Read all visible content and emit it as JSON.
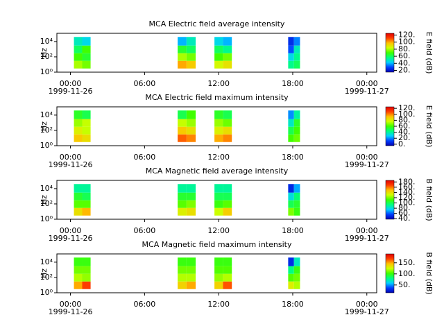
{
  "chart_data": [
    {
      "type": "heatmap",
      "title": "MCA  Electric field average intensity",
      "ylabel": "Hz",
      "colorbar_label": "E field (dB)",
      "y_log": true,
      "xlim": [
        -1.1,
        24.8
      ],
      "ylim": [
        1,
        120000
      ],
      "xticks": [
        {
          "value": 0,
          "label": "00:00"
        },
        {
          "value": 6,
          "label": "06:00"
        },
        {
          "value": 12,
          "label": "12:00"
        },
        {
          "value": 18,
          "label": "18:00"
        },
        {
          "value": 24,
          "label": "00:00"
        }
      ],
      "x_date_labels": [
        {
          "value": 0,
          "label": "1999-11-26"
        },
        {
          "value": 24,
          "label": "1999-11-27"
        }
      ],
      "yticks": [
        {
          "value": 1,
          "label": "10⁰"
        },
        {
          "value": 100,
          "label": "10²"
        },
        {
          "value": 10000,
          "label": "10⁴"
        }
      ],
      "clim": [
        15,
        125
      ],
      "cticks": [
        {
          "value": 20,
          "label": "20."
        },
        {
          "value": 40,
          "label": "40."
        },
        {
          "value": 60,
          "label": "60."
        },
        {
          "value": 80,
          "label": "80."
        },
        {
          "value": 100,
          "label": "100."
        },
        {
          "value": 120,
          "label": "120."
        }
      ],
      "colormap": [
        "#0000b0",
        "#0040ff",
        "#00d0ff",
        "#00ff80",
        "#40ff00",
        "#d0ff00",
        "#ffc000",
        "#ff4000",
        "#e00000"
      ],
      "x_edges": [
        0.28,
        0.95,
        1.63,
        8.68,
        9.4,
        10.14,
        11.66,
        12.35,
        13.07,
        17.63,
        18.1,
        18.59
      ],
      "y_edges": [
        3,
        30,
        300,
        3000,
        40000
      ],
      "values": [
        [
          80,
          75,
          null,
          100,
          95,
          null,
          85,
          90,
          null,
          55,
          60
        ],
        [
          70,
          65,
          null,
          80,
          75,
          null,
          70,
          75,
          null,
          45,
          55
        ],
        [
          60,
          70,
          null,
          65,
          60,
          null,
          60,
          55,
          null,
          30,
          50
        ],
        [
          50,
          45,
          null,
          40,
          50,
          null,
          45,
          40,
          null,
          25,
          35
        ]
      ]
    },
    {
      "type": "heatmap",
      "title": "MCA  Electric field maximum intensity",
      "ylabel": "Hz",
      "colorbar_label": "E field (dB)",
      "y_log": true,
      "xlim": [
        -1.1,
        24.8
      ],
      "ylim": [
        1,
        120000
      ],
      "xticks": [
        {
          "value": 0,
          "label": "00:00"
        },
        {
          "value": 6,
          "label": "06:00"
        },
        {
          "value": 12,
          "label": "12:00"
        },
        {
          "value": 18,
          "label": "18:00"
        },
        {
          "value": 24,
          "label": "00:00"
        }
      ],
      "x_date_labels": [
        {
          "value": 0,
          "label": "1999-11-26"
        },
        {
          "value": 24,
          "label": "1999-11-27"
        }
      ],
      "yticks": [
        {
          "value": 1,
          "label": "10⁰"
        },
        {
          "value": 100,
          "label": "10²"
        },
        {
          "value": 10000,
          "label": "10⁴"
        }
      ],
      "clim": [
        -5,
        125
      ],
      "cticks": [
        {
          "value": 0,
          "label": "0."
        },
        {
          "value": 20,
          "label": "20."
        },
        {
          "value": 40,
          "label": "40."
        },
        {
          "value": 60,
          "label": "60."
        },
        {
          "value": 80,
          "label": "80."
        },
        {
          "value": 100,
          "label": "100."
        },
        {
          "value": 120,
          "label": "120."
        }
      ],
      "colormap": [
        "#0000b0",
        "#0040ff",
        "#00d0ff",
        "#00ff80",
        "#40ff00",
        "#d0ff00",
        "#ffc000",
        "#ff4000",
        "#e00000"
      ],
      "x_edges": [
        0.28,
        0.95,
        1.63,
        8.68,
        9.4,
        10.14,
        11.66,
        12.35,
        13.07,
        17.63,
        18.1,
        18.59
      ],
      "y_edges": [
        3,
        30,
        300,
        3000,
        40000
      ],
      "values": [
        [
          90,
          85,
          null,
          105,
          100,
          null,
          95,
          100,
          null,
          60,
          65
        ],
        [
          80,
          75,
          null,
          90,
          85,
          null,
          80,
          85,
          null,
          50,
          60
        ],
        [
          70,
          75,
          null,
          75,
          70,
          null,
          70,
          65,
          null,
          35,
          55
        ],
        [
          55,
          50,
          null,
          50,
          60,
          null,
          55,
          50,
          null,
          20,
          40
        ]
      ]
    },
    {
      "type": "heatmap",
      "title": "MCA  Magnetic field average intensity",
      "ylabel": "Hz",
      "colorbar_label": "B field (dB)",
      "y_log": true,
      "xlim": [
        -1.1,
        24.8
      ],
      "ylim": [
        1,
        120000
      ],
      "xticks": [
        {
          "value": 0,
          "label": "00:00"
        },
        {
          "value": 6,
          "label": "06:00"
        },
        {
          "value": 12,
          "label": "12:00"
        },
        {
          "value": 18,
          "label": "18:00"
        },
        {
          "value": 24,
          "label": "00:00"
        }
      ],
      "x_date_labels": [
        {
          "value": 0,
          "label": "1999-11-26"
        },
        {
          "value": 24,
          "label": "1999-11-27"
        }
      ],
      "yticks": [
        {
          "value": 1,
          "label": "10⁰"
        },
        {
          "value": 100,
          "label": "10²"
        },
        {
          "value": 10000,
          "label": "10⁴"
        }
      ],
      "clim": [
        38,
        186
      ],
      "cticks": [
        {
          "value": 40,
          "label": "40."
        },
        {
          "value": 60,
          "label": "60."
        },
        {
          "value": 80,
          "label": "80."
        },
        {
          "value": 100,
          "label": "100."
        },
        {
          "value": 120,
          "label": "120."
        },
        {
          "value": 140,
          "label": "140."
        },
        {
          "value": 160,
          "label": "160."
        },
        {
          "value": 180,
          "label": "180."
        }
      ],
      "colormap": [
        "#0000b0",
        "#0040ff",
        "#00d0ff",
        "#00ff80",
        "#40ff00",
        "#d0ff00",
        "#ffc000",
        "#ff4000",
        "#e00000"
      ],
      "x_edges": [
        0.28,
        0.95,
        1.63,
        8.68,
        9.4,
        10.14,
        11.66,
        12.35,
        13.07,
        17.63,
        18.1,
        18.59
      ],
      "y_edges": [
        3,
        30,
        300,
        3000,
        40000
      ],
      "values": [
        [
          140,
          150,
          null,
          135,
          140,
          null,
          130,
          145,
          null,
          120,
          110
        ],
        [
          115,
          115,
          null,
          115,
          120,
          null,
          110,
          115,
          null,
          100,
          105
        ],
        [
          105,
          100,
          null,
          105,
          105,
          null,
          100,
          100,
          null,
          80,
          95
        ],
        [
          90,
          90,
          null,
          90,
          90,
          null,
          90,
          90,
          null,
          50,
          70
        ]
      ]
    },
    {
      "type": "heatmap",
      "title": "MCA  Magnetic field maximum intensity",
      "ylabel": "Hz",
      "colorbar_label": "B field (dB)",
      "y_log": true,
      "xlim": [
        -1.1,
        24.8
      ],
      "ylim": [
        1,
        120000
      ],
      "xticks": [
        {
          "value": 0,
          "label": "00:00"
        },
        {
          "value": 6,
          "label": "06:00"
        },
        {
          "value": 12,
          "label": "12:00"
        },
        {
          "value": 18,
          "label": "18:00"
        },
        {
          "value": 24,
          "label": "00:00"
        }
      ],
      "x_date_labels": [
        {
          "value": 0,
          "label": "1999-11-26"
        },
        {
          "value": 24,
          "label": "1999-11-27"
        }
      ],
      "yticks": [
        {
          "value": 1,
          "label": "10⁰"
        },
        {
          "value": 100,
          "label": "10²"
        },
        {
          "value": 10000,
          "label": "10⁴"
        }
      ],
      "clim": [
        15,
        190
      ],
      "cticks": [
        {
          "value": 50,
          "label": "50."
        },
        {
          "value": 100,
          "label": "100."
        },
        {
          "value": 150,
          "label": "150."
        }
      ],
      "colormap": [
        "#0000b0",
        "#0040ff",
        "#00d0ff",
        "#00ff80",
        "#40ff00",
        "#d0ff00",
        "#ffc000",
        "#ff4000",
        "#e00000"
      ],
      "x_edges": [
        0.28,
        0.95,
        1.63,
        8.68,
        9.4,
        10.14,
        11.66,
        12.35,
        13.07,
        17.63,
        18.1,
        18.59
      ],
      "y_edges": [
        3,
        30,
        300,
        3000,
        40000
      ],
      "values": [
        [
          150,
          170,
          null,
          140,
          150,
          null,
          140,
          165,
          null,
          130,
          120
        ],
        [
          120,
          115,
          null,
          120,
          120,
          null,
          115,
          120,
          null,
          105,
          110
        ],
        [
          110,
          110,
          null,
          110,
          110,
          null,
          105,
          105,
          null,
          80,
          100
        ],
        [
          100,
          100,
          null,
          100,
          100,
          null,
          100,
          100,
          null,
          30,
          70
        ]
      ]
    }
  ]
}
